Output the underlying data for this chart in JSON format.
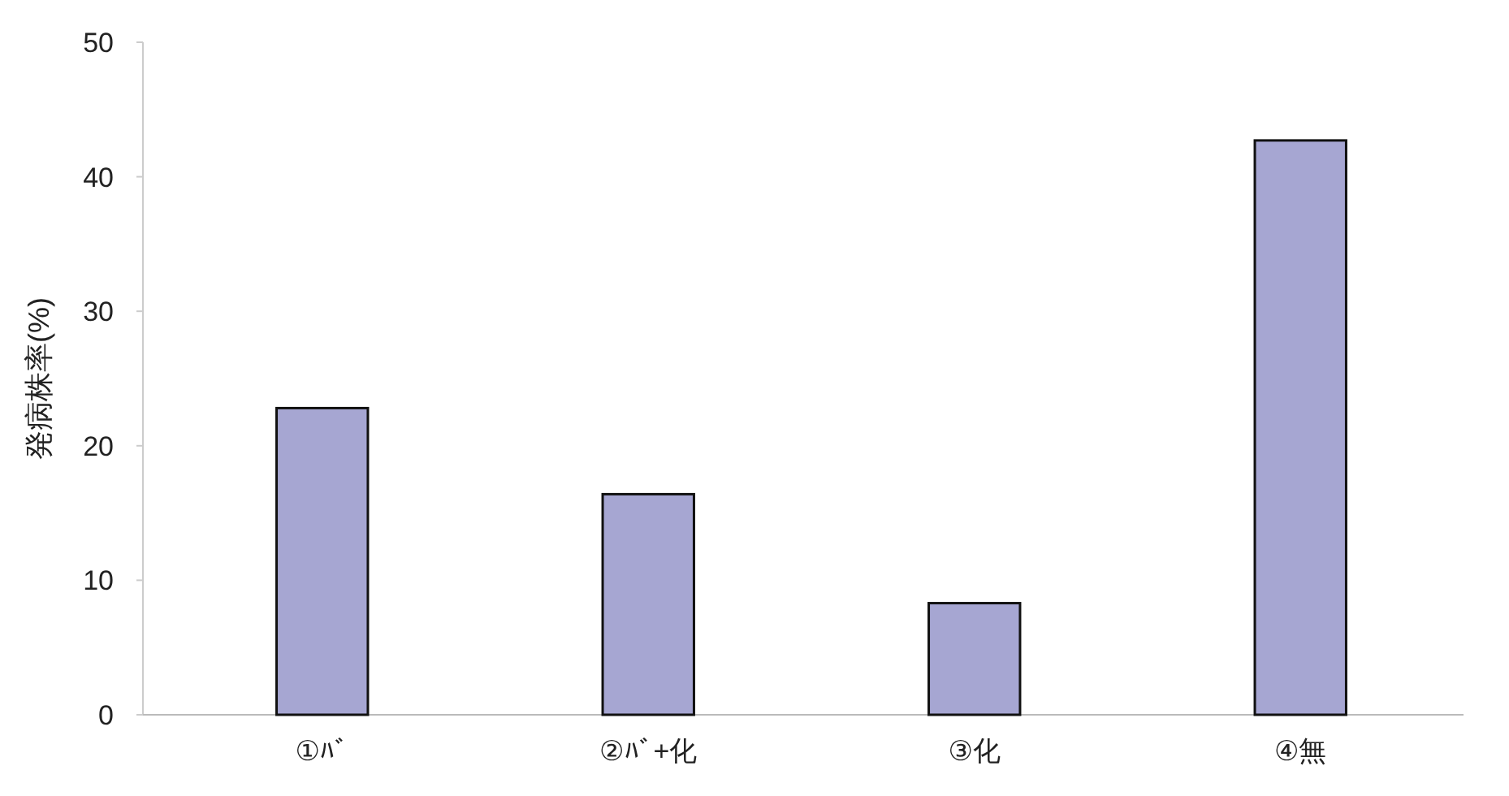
{
  "chart_data": {
    "type": "bar",
    "ylabel": "発病株率(%)",
    "categories": [
      "①ﾊﾞ",
      "②ﾊﾞ+化",
      "③化",
      "④無"
    ],
    "values": [
      22.8,
      16.4,
      8.3,
      42.7
    ],
    "color": "#a6a6d2",
    "ylim": [
      0,
      50
    ],
    "yticks": [
      0,
      10,
      20,
      30,
      40,
      50
    ],
    "grid": false
  }
}
